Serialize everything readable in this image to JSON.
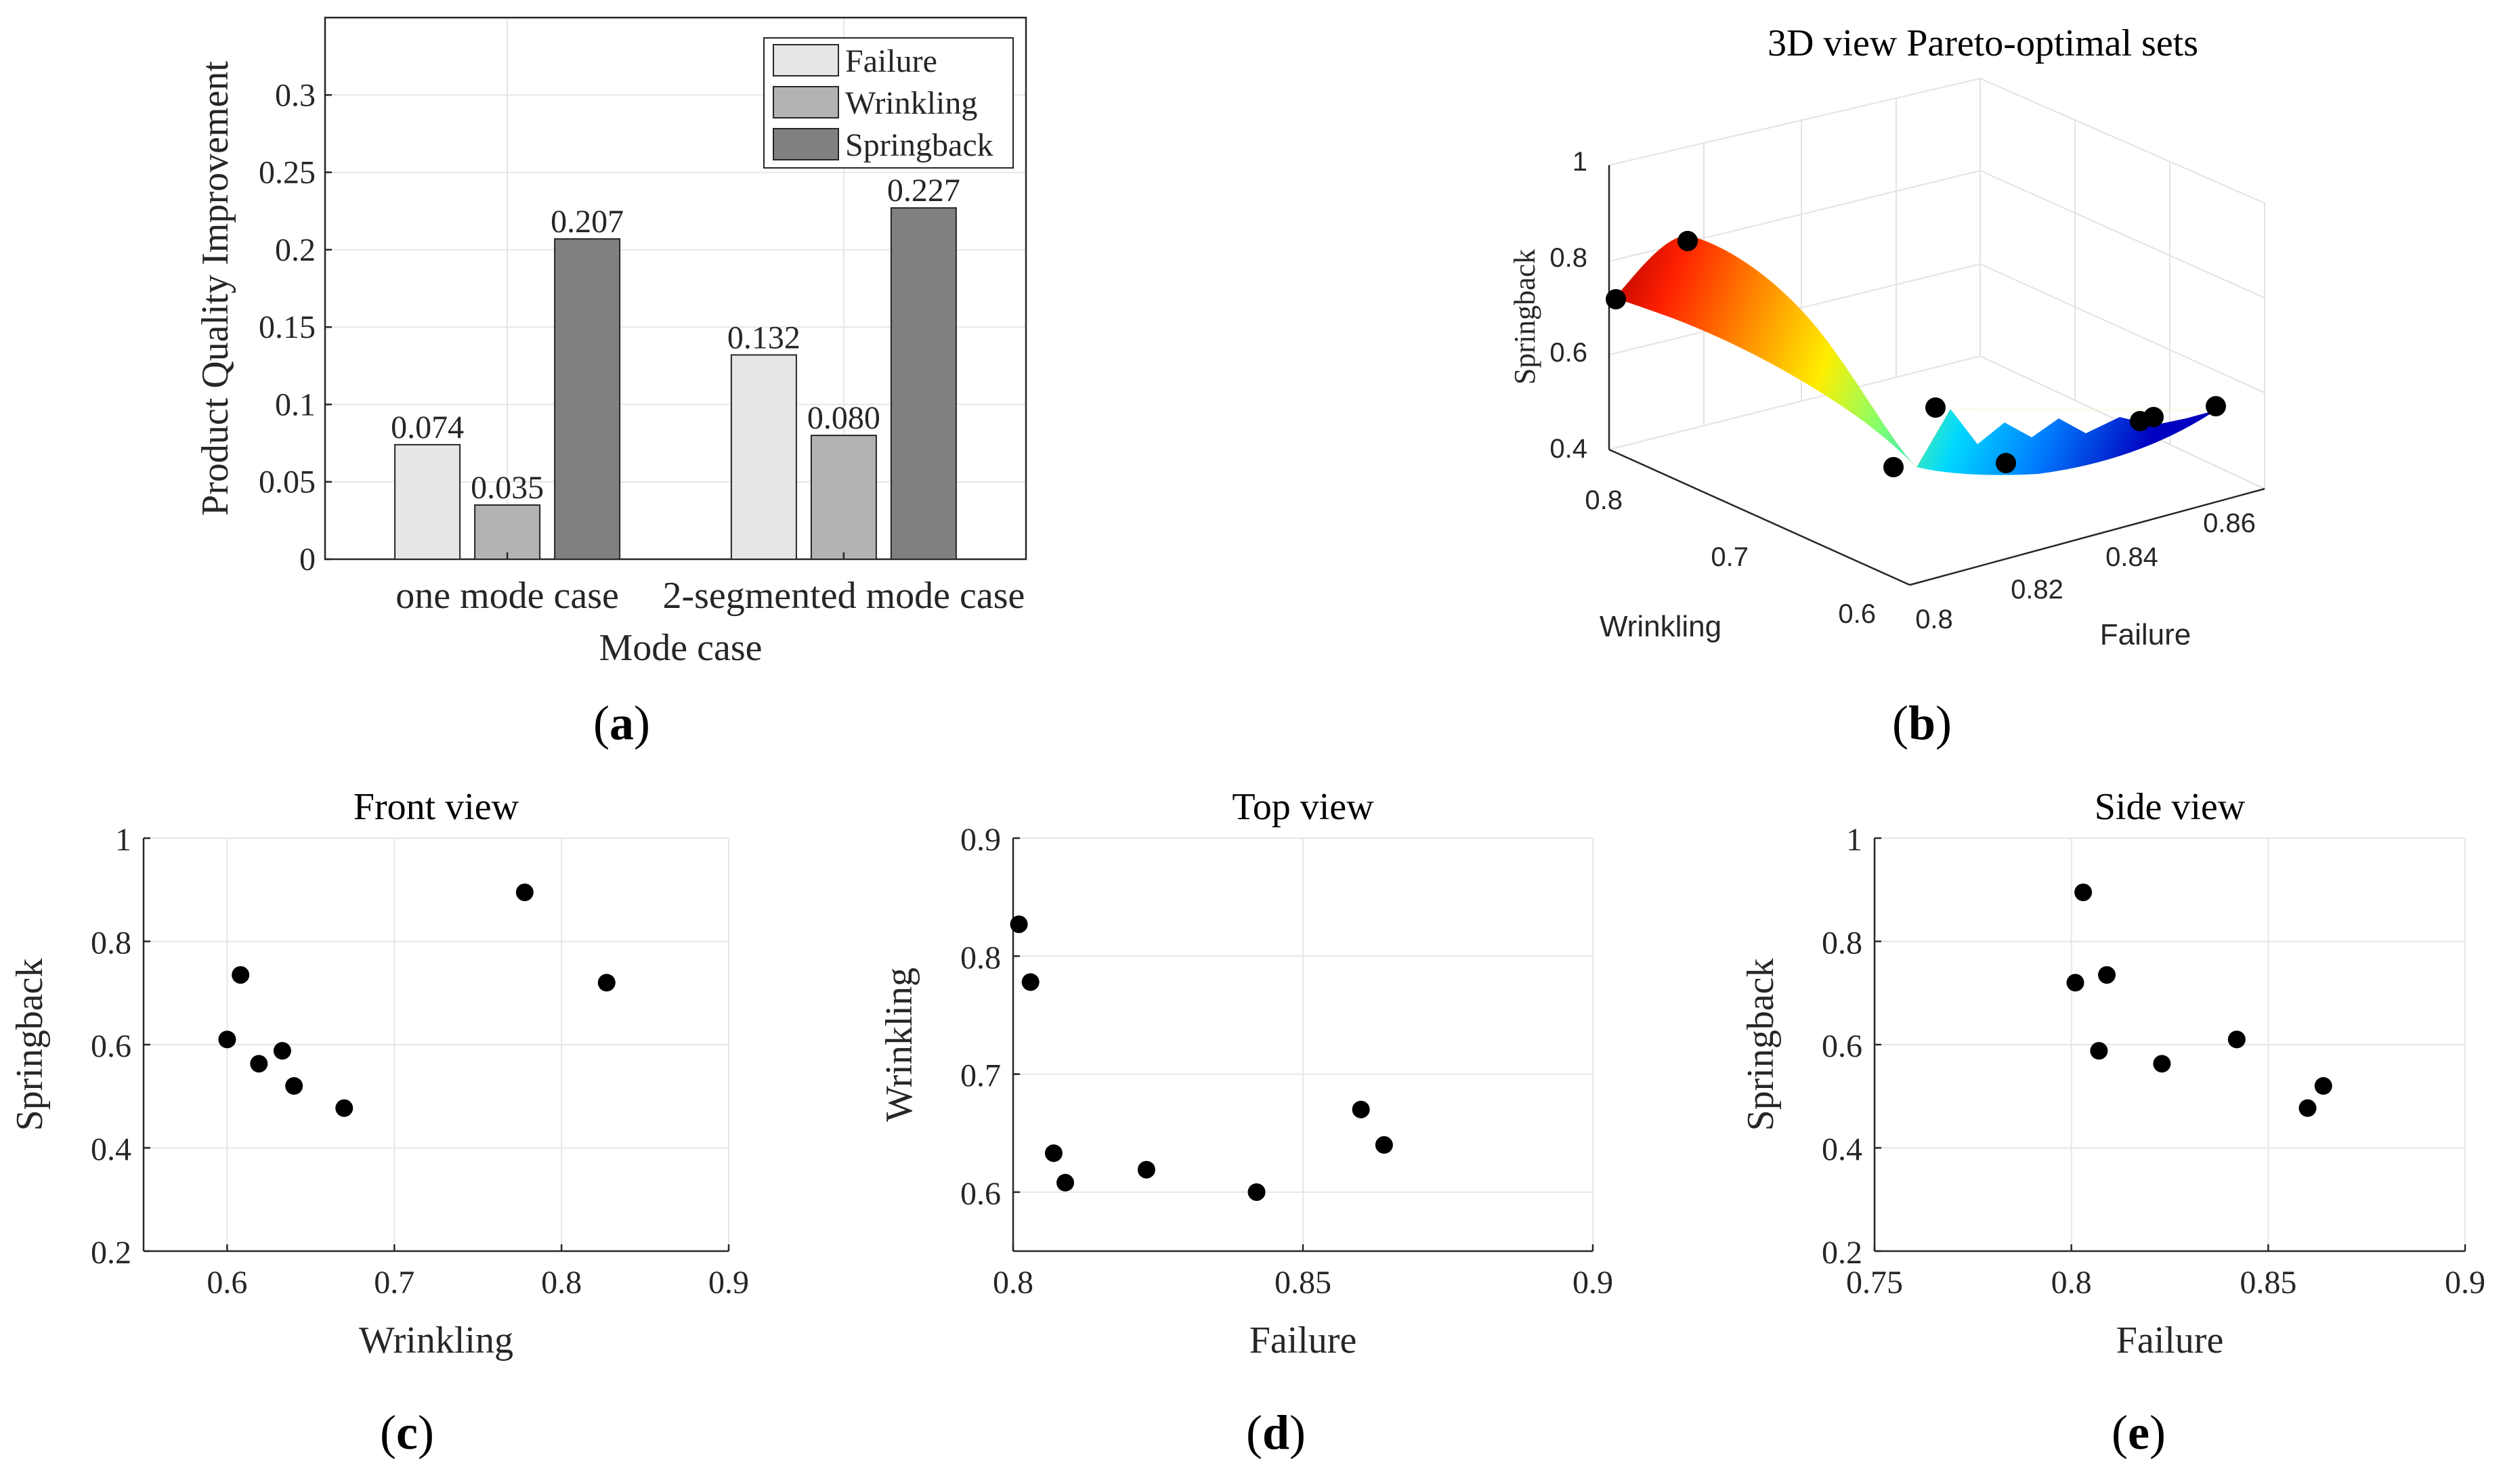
{
  "chart_data": [
    {
      "id": "a",
      "type": "bar",
      "caption_letter": "a",
      "categories": [
        "one mode case",
        "2-segmented mode case"
      ],
      "series": [
        {
          "name": "Failure",
          "values": [
            0.074,
            0.132
          ],
          "labels": [
            "0.074",
            "0.132"
          ],
          "color": "#e6e6e6"
        },
        {
          "name": "Wrinkling",
          "values": [
            0.035,
            0.08
          ],
          "labels": [
            "0.035",
            "0.080"
          ],
          "color": "#b3b3b3"
        },
        {
          "name": "Springback",
          "values": [
            0.207,
            0.227
          ],
          "labels": [
            "0.207",
            "0.227"
          ],
          "color": "#808080"
        }
      ],
      "xlabel": "Mode case",
      "ylabel": "Product Quality Improvement",
      "ylim": [
        0,
        0.35
      ],
      "yticks": [
        0,
        0.05,
        0.1,
        0.15,
        0.2,
        0.25,
        0.3
      ],
      "ytick_labels": [
        "0",
        "0.05",
        "0.1",
        "0.15",
        "0.2",
        "0.25",
        "0.3"
      ],
      "grid": true,
      "legend": "top-right"
    },
    {
      "id": "b",
      "type": "surface3d",
      "caption_letter": "b",
      "title": "3D view Pareto-optimal sets",
      "xlabel": "Failure",
      "ylabel": "Wrinkling",
      "zlabel": "Springback",
      "xticks": [
        "0.8",
        "0.82",
        "0.84",
        "0.86"
      ],
      "yticks": [
        "0.6",
        "0.7",
        "0.8"
      ],
      "zticks": [
        "0.4",
        "0.6",
        "0.8",
        "1"
      ],
      "points": [
        {
          "failure": 0.801,
          "wrinkling": 0.827,
          "springback": 0.72
        },
        {
          "failure": 0.803,
          "wrinkling": 0.778,
          "springback": 0.895
        },
        {
          "failure": 0.809,
          "wrinkling": 0.608,
          "springback": 0.735
        },
        {
          "failure": 0.807,
          "wrinkling": 0.633,
          "springback": 0.588
        },
        {
          "failure": 0.823,
          "wrinkling": 0.619,
          "springback": 0.563
        },
        {
          "failure": 0.842,
          "wrinkling": 0.6,
          "springback": 0.61
        },
        {
          "failure": 0.86,
          "wrinkling": 0.67,
          "springback": 0.477
        },
        {
          "failure": 0.864,
          "wrinkling": 0.64,
          "springback": 0.52
        }
      ],
      "colormap": "jet"
    },
    {
      "id": "c",
      "type": "scatter",
      "caption_letter": "c",
      "title": "Front view",
      "xlabel": "Wrinkling",
      "ylabel": "Springback",
      "xlim": [
        0.55,
        0.9
      ],
      "ylim": [
        0.2,
        1
      ],
      "xticks": [
        0.6,
        0.7,
        0.8,
        0.9
      ],
      "xtick_labels": [
        "0.6",
        "0.7",
        "0.8",
        "0.9"
      ],
      "yticks": [
        0.2,
        0.4,
        0.6,
        0.8,
        1
      ],
      "ytick_labels": [
        "0.2",
        "0.4",
        "0.6",
        "0.8",
        "1"
      ],
      "x": [
        0.6,
        0.608,
        0.619,
        0.633,
        0.64,
        0.67,
        0.778,
        0.827
      ],
      "y": [
        0.61,
        0.735,
        0.563,
        0.588,
        0.52,
        0.477,
        0.895,
        0.72
      ]
    },
    {
      "id": "d",
      "type": "scatter",
      "caption_letter": "d",
      "title": "Top view",
      "xlabel": "Failure",
      "ylabel": "Wrinkling",
      "xlim": [
        0.8,
        0.9
      ],
      "ylim": [
        0.55,
        0.9
      ],
      "xticks": [
        0.8,
        0.85,
        0.9
      ],
      "xtick_labels": [
        "0.8",
        "0.85",
        "0.9"
      ],
      "yticks": [
        0.6,
        0.7,
        0.8,
        0.9
      ],
      "ytick_labels": [
        "0.6",
        "0.7",
        "0.8",
        "0.9"
      ],
      "x": [
        0.801,
        0.803,
        0.807,
        0.809,
        0.823,
        0.842,
        0.86,
        0.864
      ],
      "y": [
        0.827,
        0.778,
        0.633,
        0.608,
        0.619,
        0.6,
        0.67,
        0.64
      ]
    },
    {
      "id": "e",
      "type": "scatter",
      "caption_letter": "e",
      "title": "Side view",
      "xlabel": "Failure",
      "ylabel": "Springback",
      "xlim": [
        0.75,
        0.9
      ],
      "ylim": [
        0.2,
        1
      ],
      "xticks": [
        0.75,
        0.8,
        0.85,
        0.9
      ],
      "xtick_labels": [
        "0.75",
        "0.8",
        "0.85",
        "0.9"
      ],
      "yticks": [
        0.2,
        0.4,
        0.6,
        0.8,
        1
      ],
      "ytick_labels": [
        "0.2",
        "0.4",
        "0.6",
        "0.8",
        "1"
      ],
      "x": [
        0.801,
        0.803,
        0.807,
        0.809,
        0.823,
        0.842,
        0.86,
        0.864
      ],
      "y": [
        0.72,
        0.895,
        0.588,
        0.735,
        0.563,
        0.61,
        0.477,
        0.52
      ]
    }
  ],
  "captions": {
    "open": "(",
    "close": ")"
  }
}
